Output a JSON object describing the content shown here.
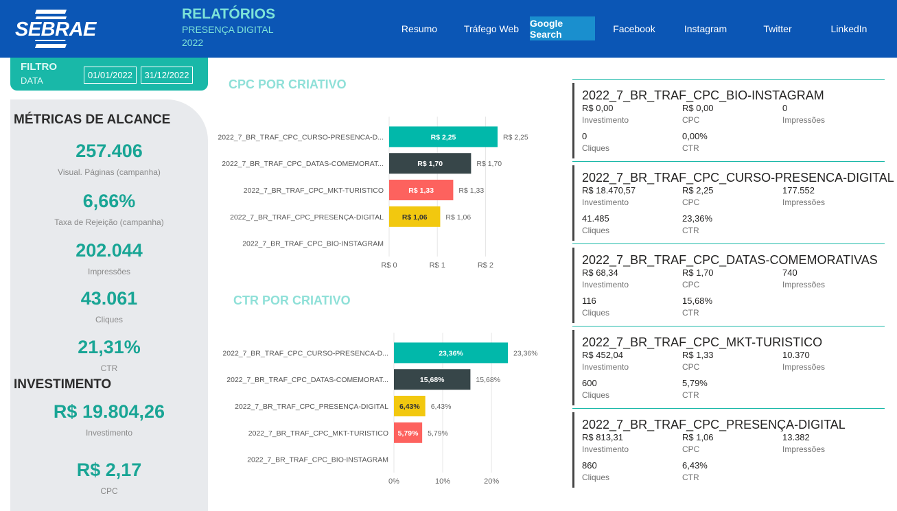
{
  "header": {
    "logo_text": "SEBRAE",
    "title": "RELATÓRIOS",
    "subtitle": "PRESENÇA DIGITAL",
    "year": "2022",
    "nav": [
      "Resumo",
      "Tráfego Web",
      "Google Search",
      "Facebook",
      "Instagram",
      "Twitter",
      "LinkedIn"
    ],
    "active_nav": "Google Search"
  },
  "filter": {
    "label": "FILTRO",
    "sublabel": "DATA",
    "start": "01/01/2022",
    "end": "31/12/2022"
  },
  "reach": {
    "title": "MÉTRICAS DE ALCANCE",
    "metrics": [
      {
        "value": "257.406",
        "label": "Visual. Páginas (campanha)"
      },
      {
        "value": "6,66%",
        "label": "Taxa de Rejeição (campanha)"
      },
      {
        "value": "202.044",
        "label": "Impressões"
      },
      {
        "value": "43.061",
        "label": "Cliques"
      },
      {
        "value": "21,31%",
        "label": "CTR"
      }
    ]
  },
  "investment": {
    "title": "INVESTIMENTO",
    "metrics": [
      {
        "value": "R$ 19.804,26",
        "label": "Investimento"
      },
      {
        "value": "R$ 2,17",
        "label": "CPC"
      }
    ]
  },
  "colors": {
    "teal": "#01b8aa",
    "dark": "#374649",
    "red": "#fd625e",
    "yellow": "#f2c80f",
    "header_blue": "#0b56b5"
  },
  "chart_data": [
    {
      "type": "bar",
      "orientation": "horizontal",
      "title": "CPC POR CRIATIVO",
      "categories": [
        "2022_7_BR_TRAF_CPC_CURSO-PRESENCA-D...",
        "2022_7_BR_TRAF_CPC_DATAS-COMEMORAT...",
        "2022_7_BR_TRAF_CPC_MKT-TURISTICO",
        "2022_7_BR_TRAF_CPC_PRESENÇA-DIGITAL",
        "2022_7_BR_TRAF_CPC_BIO-INSTAGRAM"
      ],
      "values": [
        2.25,
        1.7,
        1.33,
        1.06,
        0
      ],
      "value_labels": [
        "R$ 2,25",
        "R$ 1,70",
        "R$ 1,33",
        "R$ 1,06",
        ""
      ],
      "colors": [
        "#01b8aa",
        "#374649",
        "#fd625e",
        "#f2c80f",
        "#cccccc"
      ],
      "xlim": [
        0,
        2.25
      ],
      "xticks": [
        0,
        1,
        2
      ],
      "xtick_labels": [
        "R$ 0",
        "R$ 1",
        "R$ 2"
      ],
      "grid": true
    },
    {
      "type": "bar",
      "orientation": "horizontal",
      "title": "CTR POR CRIATIVO",
      "categories": [
        "2022_7_BR_TRAF_CPC_CURSO-PRESENCA-D...",
        "2022_7_BR_TRAF_CPC_DATAS-COMEMORAT...",
        "2022_7_BR_TRAF_CPC_PRESENÇA-DIGITAL",
        "2022_7_BR_TRAF_CPC_MKT-TURISTICO",
        "2022_7_BR_TRAF_CPC_BIO-INSTAGRAM"
      ],
      "values": [
        23.36,
        15.68,
        6.43,
        5.79,
        0
      ],
      "value_labels": [
        "23,36%",
        "15,68%",
        "6,43%",
        "5,79%",
        ""
      ],
      "colors": [
        "#01b8aa",
        "#374649",
        "#f2c80f",
        "#fd625e",
        "#cccccc"
      ],
      "xlim": [
        0,
        23.36
      ],
      "xticks": [
        0,
        10,
        20
      ],
      "xtick_labels": [
        "0%",
        "10%",
        "20%"
      ],
      "grid": true
    }
  ],
  "cards": [
    {
      "name": "2022_7_BR_TRAF_CPC_BIO-INSTAGRAM",
      "invest": "R$ 0,00",
      "cpc": "R$ 0,00",
      "impr": "0",
      "clicks": "0",
      "ctr": "0,00%"
    },
    {
      "name": "2022_7_BR_TRAF_CPC_CURSO-PRESENCA-DIGITAL",
      "invest": "R$ 18.470,57",
      "cpc": "R$ 2,25",
      "impr": "177.552",
      "clicks": "41.485",
      "ctr": "23,36%"
    },
    {
      "name": "2022_7_BR_TRAF_CPC_DATAS-COMEMORATIVAS",
      "invest": "R$ 68,34",
      "cpc": "R$ 1,70",
      "impr": "740",
      "clicks": "116",
      "ctr": "15,68%"
    },
    {
      "name": "2022_7_BR_TRAF_CPC_MKT-TURISTICO",
      "invest": "R$ 452,04",
      "cpc": "R$ 1,33",
      "impr": "10.370",
      "clicks": "600",
      "ctr": "5,79%"
    },
    {
      "name": "2022_7_BR_TRAF_CPC_PRESENÇA-DIGITAL",
      "invest": "R$ 813,31",
      "cpc": "R$ 1,06",
      "impr": "13.382",
      "clicks": "860",
      "ctr": "6,43%"
    }
  ],
  "card_labels": {
    "invest": "Investimento",
    "cpc": "CPC",
    "impr": "Impressões",
    "clicks": "Cliques",
    "ctr": "CTR"
  }
}
